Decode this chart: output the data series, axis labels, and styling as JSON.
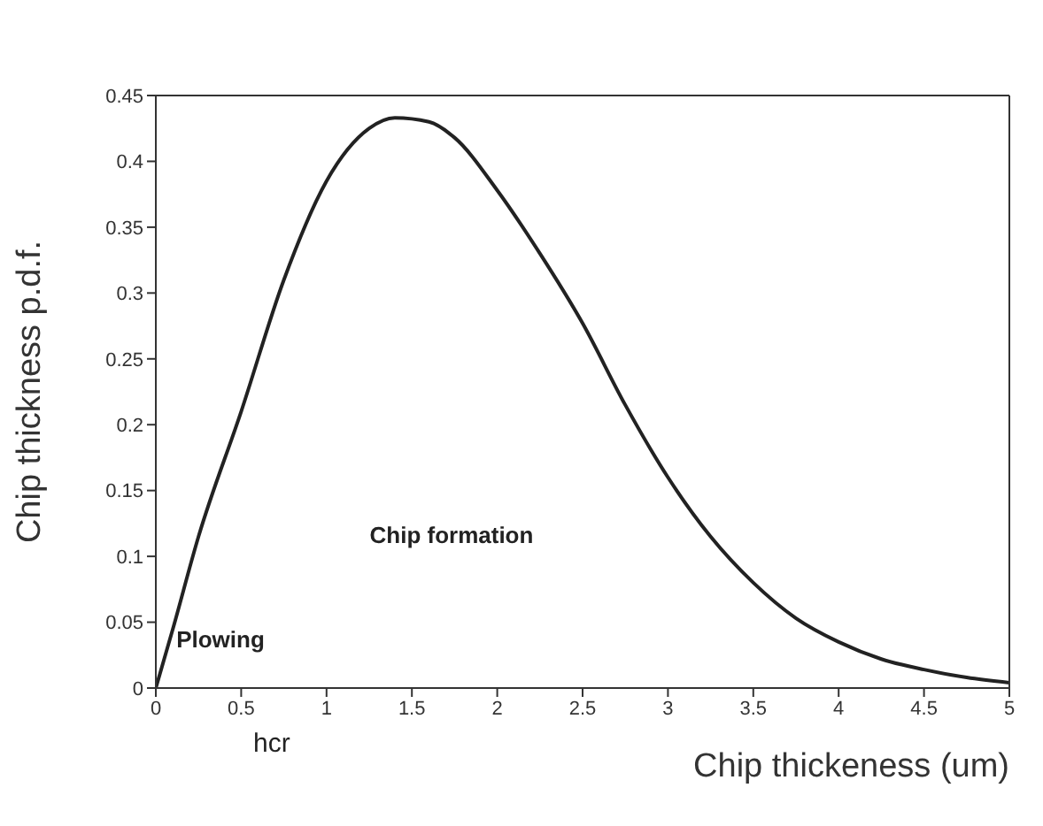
{
  "chart_data": {
    "type": "line",
    "xlabel": "Chip thickeness (um)",
    "ylabel": "Chip thickness p.d.f.",
    "x": [
      0,
      0.1,
      0.25,
      0.5,
      0.75,
      1,
      1.25,
      1.4,
      1.6,
      1.75,
      2,
      2.25,
      2.5,
      2.75,
      3,
      3.25,
      3.5,
      3.75,
      4,
      4.25,
      4.5,
      4.75,
      5
    ],
    "series": [
      {
        "color": "#222222",
        "values": [
          0,
          0.045,
          0.115,
          0.21,
          0.31,
          0.385,
          0.425,
          0.433,
          0.43,
          0.418,
          0.378,
          0.33,
          0.277,
          0.215,
          0.16,
          0.115,
          0.08,
          0.053,
          0.035,
          0.022,
          0.014,
          0.008,
          0.004
        ]
      }
    ],
    "xlim": [
      0,
      5
    ],
    "xticks": [
      0,
      0.5,
      1,
      1.5,
      2,
      2.5,
      3,
      3.5,
      4,
      4.5,
      5
    ],
    "ylim": [
      0,
      0.45
    ],
    "yticks": [
      0,
      0.05,
      0.1,
      0.15,
      0.2,
      0.25,
      0.3,
      0.35,
      0.4,
      0.45
    ],
    "annotations": [
      "Plowing",
      "Chip formation",
      "hcr"
    ],
    "grid": false,
    "legend": false,
    "marker": "none",
    "line_style": "solid"
  }
}
